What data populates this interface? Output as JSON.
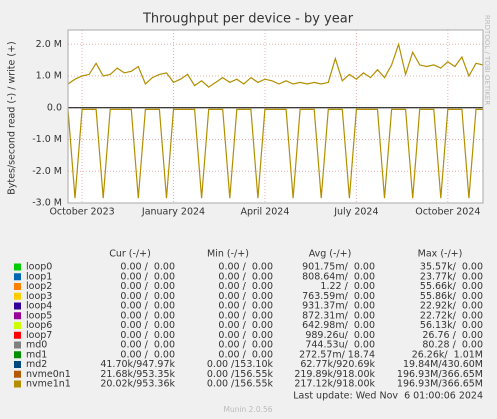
{
  "chart_data": {
    "type": "line",
    "title": "Throughput per device - by year",
    "y_label": "Bytes/second read (-) / write (+)",
    "side_text": "RRDTOOL / TOBI OETIKER",
    "categories": [
      null,
      null,
      "October 2023",
      null,
      null,
      null,
      null,
      null,
      null,
      null,
      null,
      null,
      null,
      null,
      null,
      "January 2024",
      null,
      null,
      null,
      null,
      null,
      null,
      null,
      null,
      null,
      null,
      null,
      null,
      "April 2024",
      null,
      null,
      null,
      null,
      null,
      null,
      null,
      null,
      null,
      null,
      null,
      null,
      "July 2024",
      null,
      null,
      null,
      null,
      null,
      null,
      null,
      null,
      null,
      null,
      null,
      null,
      "October 2024",
      null,
      null,
      null,
      null,
      null
    ],
    "series": [
      {
        "name": "nvme1n1",
        "color": "#b38f00",
        "values": [
          750000,
          900000,
          1000000,
          1050000,
          1400000,
          1000000,
          1050000,
          1250000,
          1100000,
          1150000,
          1300000,
          750000,
          950000,
          1050000,
          1100000,
          800000,
          900000,
          1050000,
          700000,
          850000,
          650000,
          800000,
          950000,
          800000,
          900000,
          750000,
          950000,
          800000,
          900000,
          850000,
          750000,
          850000,
          750000,
          800000,
          750000,
          800000,
          750000,
          800000,
          1550000,
          850000,
          1050000,
          900000,
          1100000,
          950000,
          1200000,
          950000,
          1350000,
          2000000,
          1050000,
          1750000,
          1350000,
          1300000,
          1350000,
          1250000,
          1450000,
          1300000,
          1600000,
          1000000,
          1400000,
          1350000
        ],
        "read": [
          -50000,
          -2850000,
          -50000,
          -50000,
          -50000,
          -2850000,
          -50000,
          -50000,
          -50000,
          -50000,
          -2850000,
          -50000,
          -50000,
          -50000,
          -2850000,
          -50000,
          -50000,
          -50000,
          -50000,
          -2850000,
          -50000,
          -50000,
          -50000,
          -2850000,
          -50000,
          -50000,
          -50000,
          -2850000,
          -50000,
          -50000,
          -50000,
          -50000,
          -2850000,
          -50000,
          -50000,
          -50000,
          -2850000,
          -50000,
          -50000,
          -50000,
          -2850000,
          -50000,
          -50000,
          -50000,
          -50000,
          -2850000,
          -50000,
          -50000,
          -50000,
          -2850000,
          -50000,
          -50000,
          -50000,
          -2850000,
          -50000,
          -50000,
          -50000,
          -2850000,
          -50000,
          -50000
        ]
      }
    ],
    "ylim": [
      -3000000,
      2450000
    ],
    "yticks": [
      {
        "value": -3000000,
        "label": "-3.0 M"
      },
      {
        "value": -2000000,
        "label": "-2.0 M"
      },
      {
        "value": -1000000,
        "label": "-1.0 M"
      },
      {
        "value": 0,
        "label": "0.0"
      },
      {
        "value": 1000000,
        "label": "1.0 M"
      },
      {
        "value": 2000000,
        "label": "2.0 M"
      }
    ],
    "grid": true
  },
  "legend": {
    "columns": [
      "Cur (-/+)",
      "Min (-/+)",
      "Avg (-/+)",
      "Max (-/+)"
    ],
    "rows": [
      {
        "name": "loop0",
        "color": "#00cc00",
        "cur": "0.00 /  0.00",
        "min": "0.00 /  0.00",
        "avg": "901.75m/  0.00",
        "max": "35.57k/  0.00"
      },
      {
        "name": "loop1",
        "color": "#0066b3",
        "cur": "0.00 /  0.00",
        "min": "0.00 /  0.00",
        "avg": "808.64m/  0.00",
        "max": "23.77k/  0.00"
      },
      {
        "name": "loop2",
        "color": "#ff8000",
        "cur": "0.00 /  0.00",
        "min": "0.00 /  0.00",
        "avg": "1.22 /  0.00",
        "max": "55.66k/  0.00"
      },
      {
        "name": "loop3",
        "color": "#ffcc00",
        "cur": "0.00 /  0.00",
        "min": "0.00 /  0.00",
        "avg": "763.59m/  0.00",
        "max": "55.86k/  0.00"
      },
      {
        "name": "loop4",
        "color": "#330099",
        "cur": "0.00 /  0.00",
        "min": "0.00 /  0.00",
        "avg": "931.37m/  0.00",
        "max": "22.92k/  0.00"
      },
      {
        "name": "loop5",
        "color": "#990099",
        "cur": "0.00 /  0.00",
        "min": "0.00 /  0.00",
        "avg": "872.31m/  0.00",
        "max": "22.72k/  0.00"
      },
      {
        "name": "loop6",
        "color": "#ccff00",
        "cur": "0.00 /  0.00",
        "min": "0.00 /  0.00",
        "avg": "642.98m/  0.00",
        "max": "56.13k/  0.00"
      },
      {
        "name": "loop7",
        "color": "#ff0000",
        "cur": "0.00 /  0.00",
        "min": "0.00 /  0.00",
        "avg": "989.26u/  0.00",
        "max": "26.76 /  0.00"
      },
      {
        "name": "md0",
        "color": "#808080",
        "cur": "0.00 /  0.00",
        "min": "0.00 /  0.00",
        "avg": "744.53u/  0.00",
        "max": "80.28 /  0.00"
      },
      {
        "name": "md1",
        "color": "#008f00",
        "cur": "0.00 /  0.00",
        "min": "0.00 /  0.00",
        "avg": "272.57m/ 18.74",
        "max": "26.26k/  1.01M"
      },
      {
        "name": "md2",
        "color": "#00487d",
        "cur": "41.70k/947.97k",
        "min": "0.00 /153.10k",
        "avg": "62.77k/920.69k",
        "max": "19.84M/430.60M"
      },
      {
        "name": "nvme0n1",
        "color": "#b35a00",
        "cur": "21.68k/953.35k",
        "min": "0.00 /156.55k",
        "avg": "219.89k/918.00k",
        "max": "196.93M/366.65M"
      },
      {
        "name": "nvme1n1",
        "color": "#b38f00",
        "cur": "20.02k/953.36k",
        "min": "0.00 /156.55k",
        "avg": "217.12k/918.00k",
        "max": "196.93M/366.65M"
      }
    ]
  },
  "footer": {
    "last_update": "Last update: Wed Nov  6 01:00:06 2024",
    "version": "Munin 2.0.56"
  }
}
